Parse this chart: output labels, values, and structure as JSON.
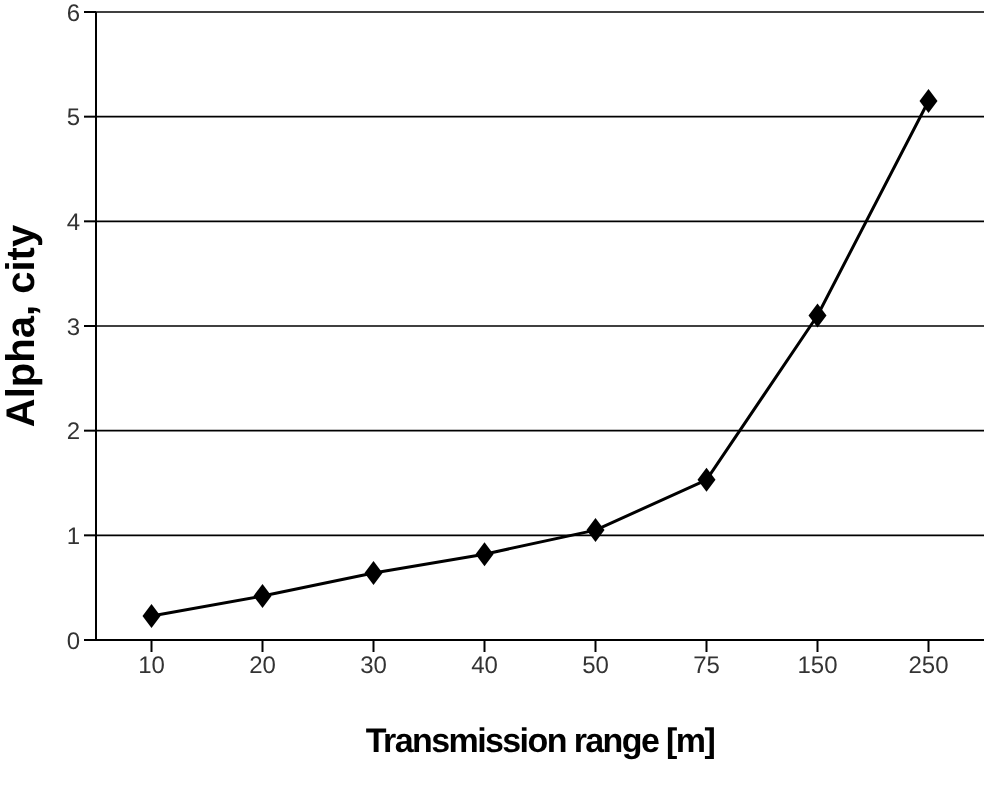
{
  "chart_data": {
    "type": "line",
    "xlabel": "Transmission range [m]",
    "ylabel": "Alpha, city",
    "categories": [
      "10",
      "20",
      "30",
      "40",
      "50",
      "75",
      "150",
      "250"
    ],
    "series": [
      {
        "color": "#000000",
        "values": [
          0.23,
          0.42,
          0.64,
          0.82,
          1.05,
          1.53,
          3.1,
          5.15
        ]
      }
    ],
    "ylim": [
      0,
      6
    ],
    "yticks": [
      0,
      1,
      2,
      3,
      4,
      5,
      6
    ],
    "grid": "y",
    "marker": "diamond",
    "line_style": "solid",
    "legend": false
  }
}
